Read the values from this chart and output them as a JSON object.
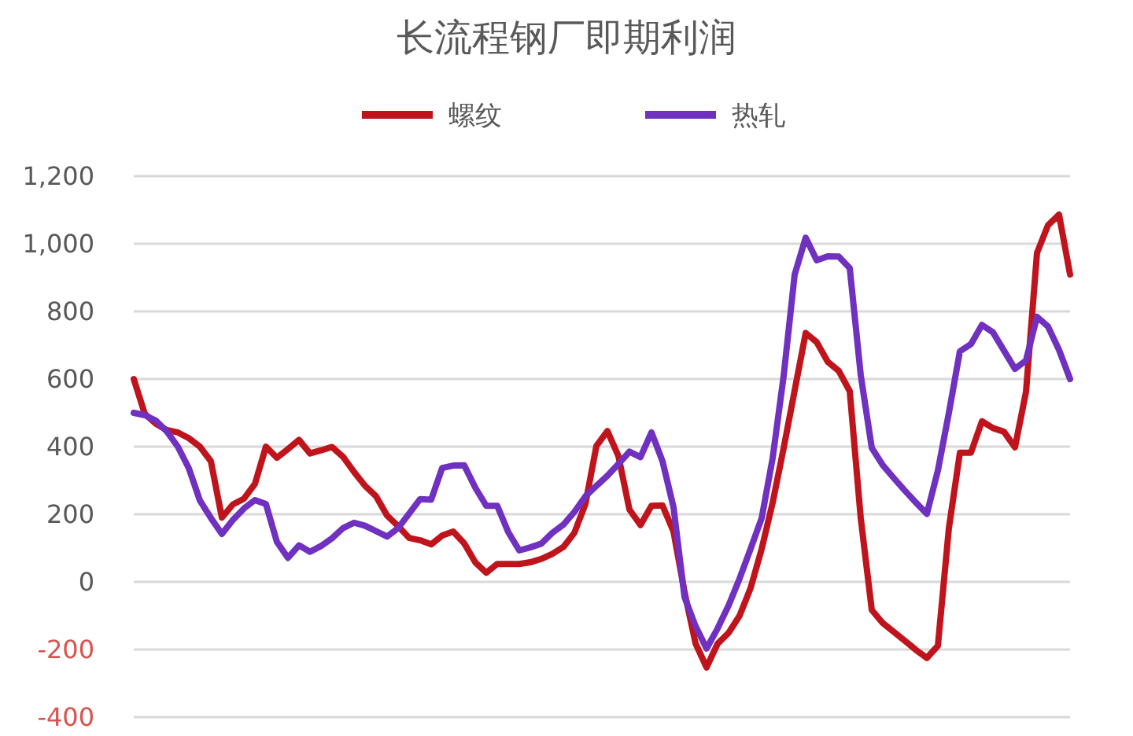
{
  "chart_data": {
    "type": "line",
    "title": "长流程钢厂即期利润",
    "ylim": [
      -400,
      1200
    ],
    "categories": [
      null,
      null,
      null,
      null,
      null,
      null,
      null,
      null,
      null,
      null,
      null,
      null,
      null,
      null,
      null,
      null,
      null,
      null,
      null,
      null,
      null,
      null,
      null,
      null,
      null,
      null,
      null,
      null,
      null,
      null,
      null,
      null,
      null,
      null,
      null,
      null,
      null,
      null,
      null,
      null,
      null,
      null,
      null,
      null,
      null,
      null,
      null,
      null,
      null,
      null,
      null,
      null,
      null,
      null,
      null,
      null,
      null,
      null,
      null,
      null,
      null,
      null,
      null,
      null,
      null,
      null,
      null,
      null,
      null,
      null,
      null,
      null,
      null,
      null,
      null,
      null,
      null,
      null,
      null,
      null,
      null,
      null,
      null,
      null,
      null,
      null
    ],
    "yticks": [
      {
        "value": -400,
        "label": "-400"
      },
      {
        "value": -200,
        "label": "-200"
      },
      {
        "value": 0,
        "label": "0"
      },
      {
        "value": 200,
        "label": "200"
      },
      {
        "value": 400,
        "label": "400"
      },
      {
        "value": 600,
        "label": "600"
      },
      {
        "value": 800,
        "label": "800"
      },
      {
        "value": 1000,
        "label": "1,000"
      },
      {
        "value": 1200,
        "label": "1,200"
      }
    ],
    "tick_labels": "y",
    "grid": "y",
    "legend": "top",
    "line_style": "solid",
    "marker": "none",
    "series": [
      {
        "name": "螺纹",
        "color": "#c0141c",
        "values": [
          600,
          497,
          468,
          449,
          442,
          425,
          400,
          357,
          190,
          229,
          246,
          290,
          400,
          367,
          393,
          420,
          380,
          389,
          399,
          370,
          325,
          284,
          253,
          196,
          165,
          130,
          123,
          111,
          137,
          149,
          114,
          58,
          27,
          53,
          53,
          53,
          58,
          68,
          83,
          103,
          145,
          230,
          402,
          446,
          372,
          214,
          168,
          225,
          226,
          149,
          -30,
          -182,
          -253,
          -183,
          -151,
          -100,
          -18,
          97,
          234,
          396,
          566,
          736,
          709,
          651,
          624,
          564,
          188,
          -83,
          -122,
          -148,
          -174,
          -201,
          -225,
          -189,
          159,
          382,
          382,
          475,
          455,
          444,
          398,
          562,
          973,
          1055,
          1086,
          909
        ]
      },
      {
        "name": "热轧",
        "color": "#7030c0",
        "values": [
          500,
          493,
          477,
          445,
          400,
          336,
          241,
          189,
          142,
          183,
          217,
          242,
          230,
          118,
          71,
          108,
          89,
          106,
          129,
          159,
          175,
          166,
          150,
          134,
          159,
          202,
          245,
          243,
          337,
          344,
          345,
          279,
          225,
          225,
          147,
          93,
          102,
          113,
          145,
          169,
          207,
          253,
          284,
          314,
          349,
          385,
          369,
          442,
          357,
          221,
          -45,
          -131,
          -197,
          -138,
          -70,
          10,
          98,
          188,
          366,
          609,
          909,
          1018,
          951,
          963,
          962,
          928,
          611,
          396,
          345,
          307,
          270,
          235,
          201,
          329,
          500,
          682,
          703,
          760,
          738,
          684,
          630,
          655,
          784,
          755,
          686,
          600
        ]
      }
    ]
  }
}
